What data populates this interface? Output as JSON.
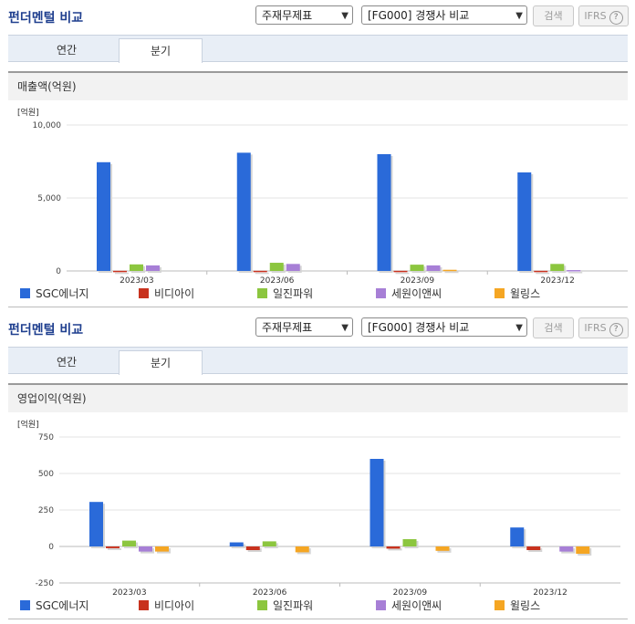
{
  "sections": [
    {
      "title": "펀더멘털 비교",
      "select1": "주재무제표",
      "select2": "[FG000] 경쟁사 비교",
      "search_label": "검색",
      "ifrs_label": "IFRS",
      "tabs": [
        "연간",
        "분기"
      ],
      "active_tab": 1,
      "panel_title": "매출액(억원)"
    },
    {
      "title": "펀더멘털 비교",
      "select1": "주재무제표",
      "select2": "[FG000] 경쟁사 비교",
      "search_label": "검색",
      "ifrs_label": "IFRS",
      "tabs": [
        "연간",
        "분기"
      ],
      "active_tab": 1,
      "panel_title": "영업이익(억원)"
    }
  ],
  "help_glyph": "?",
  "chart_data": [
    {
      "type": "bar",
      "unit_label": "[억원]",
      "categories": [
        "2023/03",
        "2023/06",
        "2023/09",
        "2023/12"
      ],
      "ylim": [
        0,
        10000
      ],
      "yticks": [
        0,
        5000,
        10000
      ],
      "ytick_labels": [
        "0",
        "5,000",
        "10,000"
      ],
      "grid": true,
      "legend_position": "bottom",
      "series": [
        {
          "name": "SGC에너지",
          "color": "#2a6ad9",
          "values": [
            7450,
            8100,
            8000,
            6750
          ]
        },
        {
          "name": "비디아이",
          "color": "#c8321e",
          "values": [
            10,
            10,
            10,
            10
          ]
        },
        {
          "name": "일진파워",
          "color": "#8cc63f",
          "values": [
            450,
            560,
            430,
            480
          ]
        },
        {
          "name": "세원이앤씨",
          "color": "#a77fd6",
          "values": [
            380,
            480,
            380,
            60
          ]
        },
        {
          "name": "윌링스",
          "color": "#f5a623",
          "values": [
            0,
            0,
            80,
            0
          ]
        }
      ]
    },
    {
      "type": "bar",
      "unit_label": "[억원]",
      "categories": [
        "2023/03",
        "2023/06",
        "2023/09",
        "2023/12"
      ],
      "ylim": [
        -250,
        750
      ],
      "yticks": [
        -250,
        0,
        250,
        500,
        750
      ],
      "ytick_labels": [
        "-250",
        "0",
        "250",
        "500",
        "750"
      ],
      "grid": true,
      "legend_position": "bottom",
      "series": [
        {
          "name": "SGC에너지",
          "color": "#2a6ad9",
          "values": [
            305,
            28,
            600,
            130
          ]
        },
        {
          "name": "비디아이",
          "color": "#c8321e",
          "values": [
            -12,
            -25,
            -15,
            -25
          ]
        },
        {
          "name": "일진파워",
          "color": "#8cc63f",
          "values": [
            40,
            35,
            50,
            0
          ]
        },
        {
          "name": "세원이앤씨",
          "color": "#a77fd6",
          "values": [
            -35,
            0,
            0,
            -35
          ]
        },
        {
          "name": "윌링스",
          "color": "#f5a623",
          "values": [
            -35,
            -40,
            -30,
            -50
          ]
        }
      ]
    }
  ]
}
